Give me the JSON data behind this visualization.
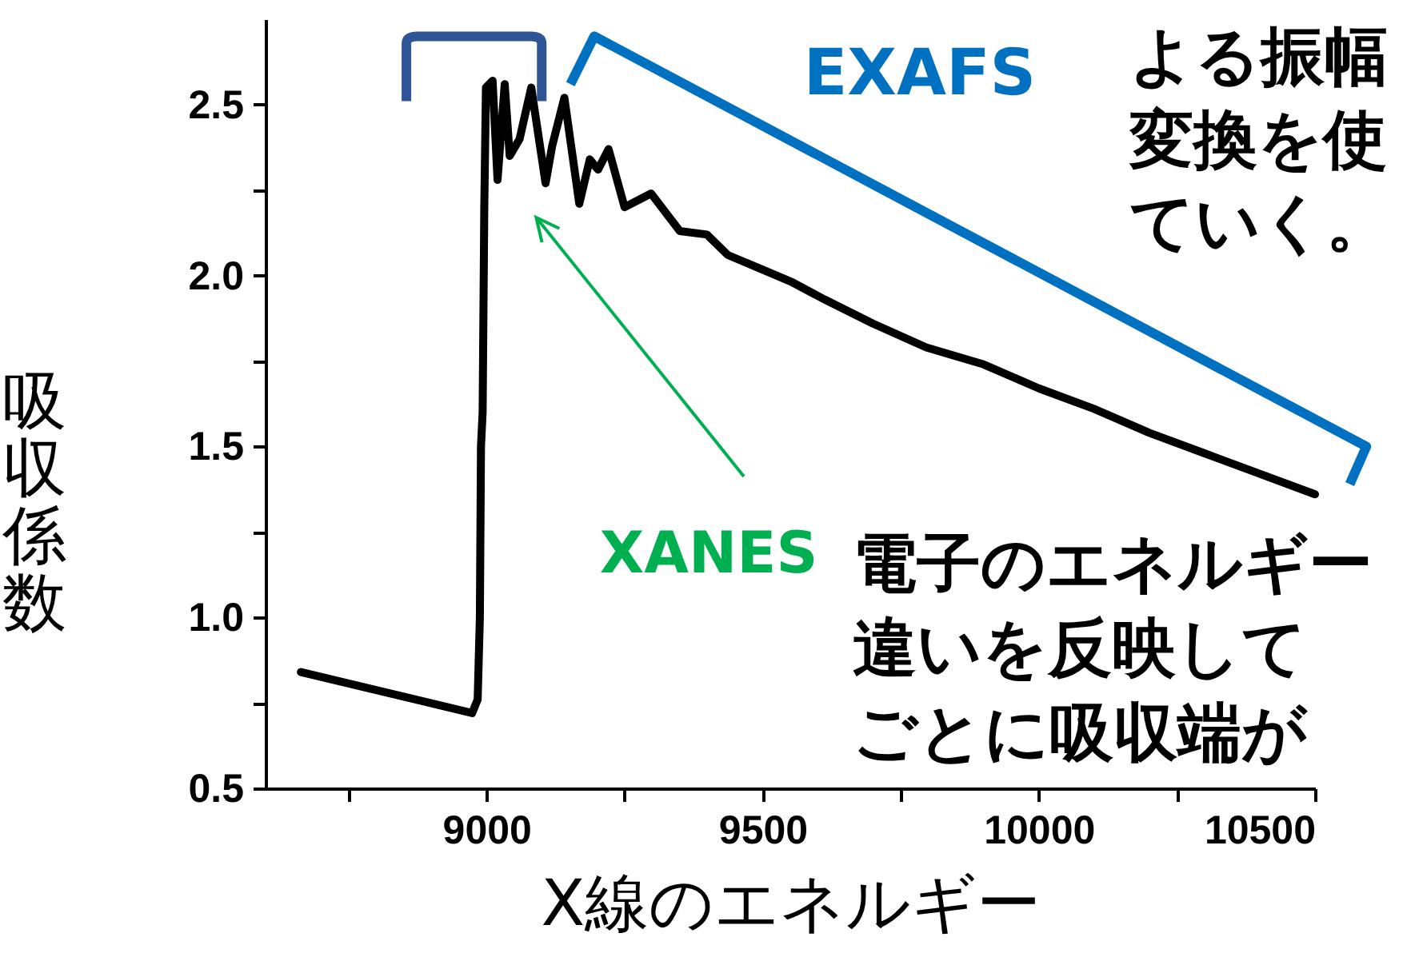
{
  "chart_data": {
    "type": "line",
    "xlabel": "X線のエネルギー",
    "ylabel": "吸収係数",
    "xlim": [
      8600,
      10500
    ],
    "xticks": [
      {
        "value": 8750,
        "label": null
      },
      9000,
      {
        "value": 9250,
        "label": null
      },
      9500,
      {
        "value": 9750,
        "label": null
      },
      10000,
      {
        "value": 10250,
        "label": null
      },
      10500
    ],
    "ylim": [
      0.5,
      2.75
    ],
    "yticks": [
      0.5,
      {
        "value": 0.75,
        "label": null
      },
      {
        "value": 1,
        "label": "1.0"
      },
      {
        "value": 1.25,
        "label": null
      },
      1.5,
      {
        "value": 1.75,
        "label": null
      },
      {
        "value": 2,
        "label": "2.0"
      },
      {
        "value": 2.25,
        "label": null
      },
      2.5
    ],
    "grid": false,
    "marker": "none",
    "line_style": "solid",
    "series": [
      {
        "color": "#000000",
        "x": [
          8664,
          8974,
          8984,
          8988,
          8990,
          8993,
          8996,
          8999,
          9011,
          9020,
          9033,
          9042,
          9060,
          9081,
          9107,
          9119,
          9141,
          9168,
          9187,
          9202,
          9221,
          9250,
          9298,
          9350,
          9399,
          9437,
          9496,
          9554,
          9612,
          9699,
          9796,
          9900,
          10000,
          10100,
          10200,
          10300,
          10400,
          10500
        ],
        "values": [
          0.84,
          0.72,
          0.76,
          1.0,
          1.5,
          1.6,
          2.2,
          2.55,
          2.57,
          2.28,
          2.56,
          2.35,
          2.4,
          2.55,
          2.27,
          2.38,
          2.52,
          2.21,
          2.34,
          2.31,
          2.37,
          2.2,
          2.24,
          2.13,
          2.12,
          2.06,
          2.02,
          1.98,
          1.93,
          1.86,
          1.79,
          1.74,
          1.67,
          1.61,
          1.54,
          1.48,
          1.42,
          1.36
        ]
      }
    ],
    "annotations": [
      "EXAFS",
      "XANES",
      "よる振幅",
      "変換を使",
      "ていく。",
      "電子のエネルギー",
      "違いを反映して",
      "ごとに吸収端が"
    ]
  }
}
